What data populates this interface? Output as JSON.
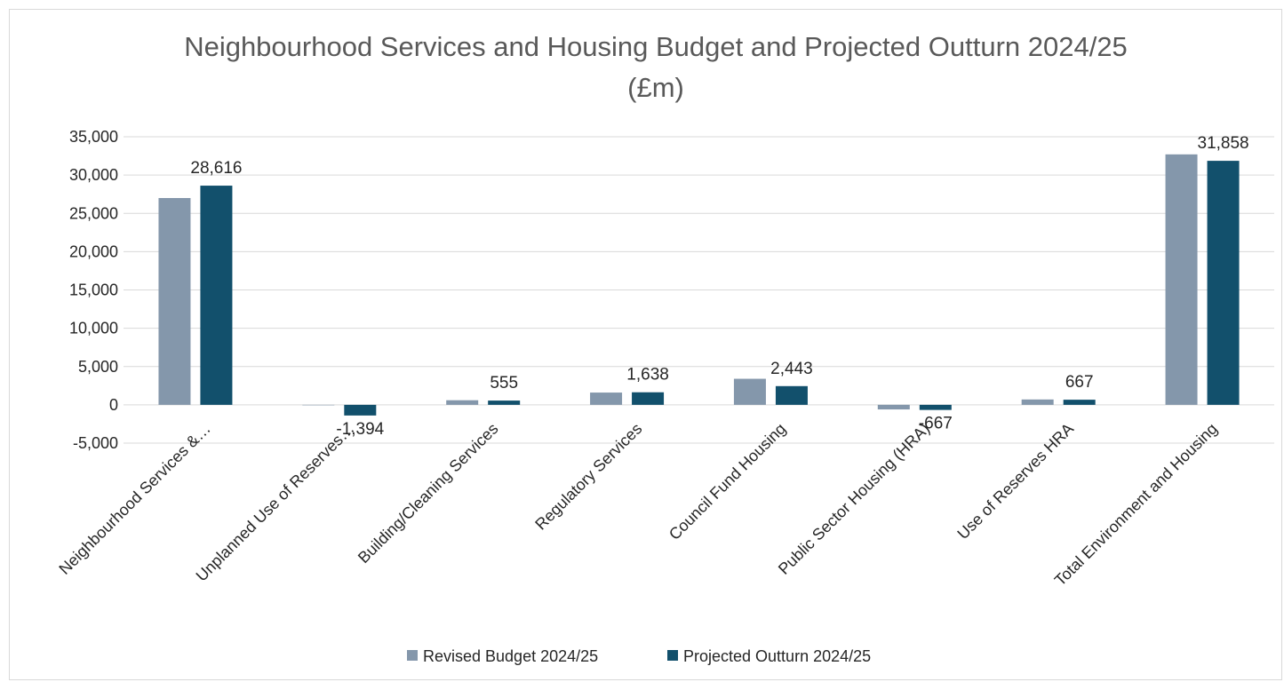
{
  "chart_data": {
    "type": "bar",
    "title_line1": "Neighbourhood Services and Housing Budget and Projected Outturn 2024/25",
    "title_line2": "(£m)",
    "categories": [
      "Neighbourhood Services &…",
      "Unplanned Use of Reserves…",
      "Building/Cleaning Services",
      "Regulatory Services",
      "Council Fund Housing",
      "Public Sector Housing (HRA)",
      "Use of Reserves HRA",
      "Total Environment and Housing"
    ],
    "series": [
      {
        "name": "Revised Budget 2024/25",
        "color": "#8497ab",
        "values": [
          27000,
          0,
          600,
          1600,
          3400,
          -600,
          700,
          32700
        ]
      },
      {
        "name": "Projected Outturn 2024/25",
        "color": "#12506c",
        "values": [
          28616,
          -1394,
          555,
          1638,
          2443,
          -667,
          667,
          31858
        ]
      }
    ],
    "data_labels": {
      "series_index": 1,
      "labels": [
        "28,616",
        "-1,394",
        "555",
        "1,638",
        "2,443",
        "-667",
        "667",
        "31,858"
      ]
    },
    "yticks": [
      "35,000",
      "30,000",
      "25,000",
      "20,000",
      "15,000",
      "10,000",
      "5,000",
      "0",
      "-5,000"
    ],
    "ytick_values": [
      35000,
      30000,
      25000,
      20000,
      15000,
      10000,
      5000,
      0,
      -5000
    ],
    "ylim": [
      -5000,
      35000
    ],
    "grid": true,
    "legend_position": "bottom"
  }
}
